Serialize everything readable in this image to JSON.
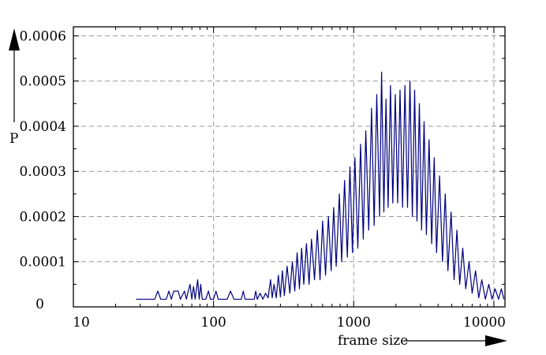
{
  "chart_data": {
    "type": "line",
    "title": "",
    "xlabel": "frame size",
    "ylabel": "P",
    "xscale": "log",
    "xlim": [
      10,
      12000
    ],
    "ylim": [
      0,
      0.00062
    ],
    "x_ticks": [
      10,
      100,
      1000,
      10000
    ],
    "x_tick_labels": [
      "10",
      "100",
      "1000",
      "10000"
    ],
    "y_ticks": [
      0,
      0.0001,
      0.0002,
      0.0003,
      0.0004,
      0.0005,
      0.0006
    ],
    "y_tick_labels": [
      "0",
      "0.0001",
      "0.0002",
      "0.0003",
      "0.0004",
      "0.0005",
      "0.0006"
    ],
    "grid": true,
    "series": [
      {
        "color": "#000080",
        "points": [
          [
            28,
            1.7e-05
          ],
          [
            38,
            1.7e-05
          ],
          [
            40,
            3.5e-05
          ],
          [
            42,
            1.7e-05
          ],
          [
            46,
            1.7e-05
          ],
          [
            48,
            3.5e-05
          ],
          [
            50,
            1.7e-05
          ],
          [
            52,
            3.5e-05
          ],
          [
            56,
            3.5e-05
          ],
          [
            58,
            1.7e-05
          ],
          [
            62,
            3.5e-05
          ],
          [
            64,
            1.7e-05
          ],
          [
            66,
            3.5e-05
          ],
          [
            68,
            5e-05
          ],
          [
            70,
            1.7e-05
          ],
          [
            72,
            4.5e-05
          ],
          [
            74,
            1.7e-05
          ],
          [
            77,
            6e-05
          ],
          [
            79,
            1.7e-05
          ],
          [
            81,
            5e-05
          ],
          [
            83,
            1.7e-05
          ],
          [
            88,
            1.7e-05
          ],
          [
            92,
            3.5e-05
          ],
          [
            95,
            1.7e-05
          ],
          [
            100,
            1.7e-05
          ],
          [
            104,
            3.5e-05
          ],
          [
            108,
            1.7e-05
          ],
          [
            125,
            1.7e-05
          ],
          [
            132,
            3.5e-05
          ],
          [
            140,
            1.7e-05
          ],
          [
            158,
            1.7e-05
          ],
          [
            163,
            3.5e-05
          ],
          [
            168,
            1.7e-05
          ],
          [
            195,
            1.7e-05
          ],
          [
            200,
            3.5e-05
          ],
          [
            205,
            1.7e-05
          ],
          [
            215,
            3e-05
          ],
          [
            225,
            1.7e-05
          ],
          [
            235,
            3e-05
          ],
          [
            245,
            2e-05
          ],
          [
            255,
            6e-05
          ],
          [
            262,
            2e-05
          ],
          [
            270,
            5e-05
          ],
          [
            280,
            2e-05
          ],
          [
            290,
            7e-05
          ],
          [
            300,
            2.2e-05
          ],
          [
            310,
            8e-05
          ],
          [
            320,
            2.5e-05
          ],
          [
            335,
            9e-05
          ],
          [
            350,
            3e-05
          ],
          [
            365,
            0.0001
          ],
          [
            380,
            3.5e-05
          ],
          [
            395,
            0.00012
          ],
          [
            410,
            4e-05
          ],
          [
            425,
            0.00013
          ],
          [
            440,
            5e-05
          ],
          [
            460,
            0.00014
          ],
          [
            480,
            5e-05
          ],
          [
            500,
            0.00015
          ],
          [
            525,
            6e-05
          ],
          [
            550,
            0.00017
          ],
          [
            575,
            6e-05
          ],
          [
            600,
            0.00019
          ],
          [
            630,
            7e-05
          ],
          [
            660,
            0.0002
          ],
          [
            690,
            8e-05
          ],
          [
            720,
            0.00022
          ],
          [
            750,
            9e-05
          ],
          [
            790,
            0.00025
          ],
          [
            820,
            0.0001
          ],
          [
            860,
            0.00028
          ],
          [
            900,
            0.00011
          ],
          [
            940,
            0.00031
          ],
          [
            980,
            0.00012
          ],
          [
            1020,
            0.00033
          ],
          [
            1070,
            0.00013
          ],
          [
            1120,
            0.00036
          ],
          [
            1170,
            0.00015
          ],
          [
            1220,
            0.00039
          ],
          [
            1280,
            0.00017
          ],
          [
            1340,
            0.00044
          ],
          [
            1400,
            0.00018
          ],
          [
            1460,
            0.00047
          ],
          [
            1530,
            0.0002
          ],
          [
            1580,
            0.00052
          ],
          [
            1640,
            0.00021
          ],
          [
            1700,
            0.00046
          ],
          [
            1760,
            0.00022
          ],
          [
            1830,
            0.00049
          ],
          [
            1900,
            0.00023
          ],
          [
            1980,
            0.00047
          ],
          [
            2060,
            0.00023
          ],
          [
            2140,
            0.00048
          ],
          [
            2230,
            0.00022
          ],
          [
            2320,
            0.00049
          ],
          [
            2420,
            0.00022
          ],
          [
            2520,
            0.0005
          ],
          [
            2620,
            0.0002
          ],
          [
            2720,
            0.00048
          ],
          [
            2830,
            0.00019
          ],
          [
            2940,
            0.00045
          ],
          [
            3050,
            0.00017
          ],
          [
            3180,
            0.00041
          ],
          [
            3300,
            0.00016
          ],
          [
            3450,
            0.00037
          ],
          [
            3600,
            0.00014
          ],
          [
            3750,
            0.00033
          ],
          [
            3900,
            0.00012
          ],
          [
            4100,
            0.00029
          ],
          [
            4300,
            0.0001
          ],
          [
            4500,
            0.00025
          ],
          [
            4700,
            8e-05
          ],
          [
            4950,
            0.00021
          ],
          [
            5200,
            6e-05
          ],
          [
            5450,
            0.00017
          ],
          [
            5700,
            5e-05
          ],
          [
            6000,
            0.00013
          ],
          [
            6300,
            4e-05
          ],
          [
            6650,
            0.0001
          ],
          [
            7000,
            3e-05
          ],
          [
            7400,
            8e-05
          ],
          [
            7800,
            2e-05
          ],
          [
            8200,
            6e-05
          ],
          [
            8700,
            1.7e-05
          ],
          [
            9200,
            5e-05
          ],
          [
            9700,
            1.7e-05
          ],
          [
            10200,
            4e-05
          ],
          [
            10800,
            1.7e-05
          ],
          [
            11300,
            4e-05
          ],
          [
            11800,
            1.7e-05
          ]
        ]
      }
    ]
  }
}
